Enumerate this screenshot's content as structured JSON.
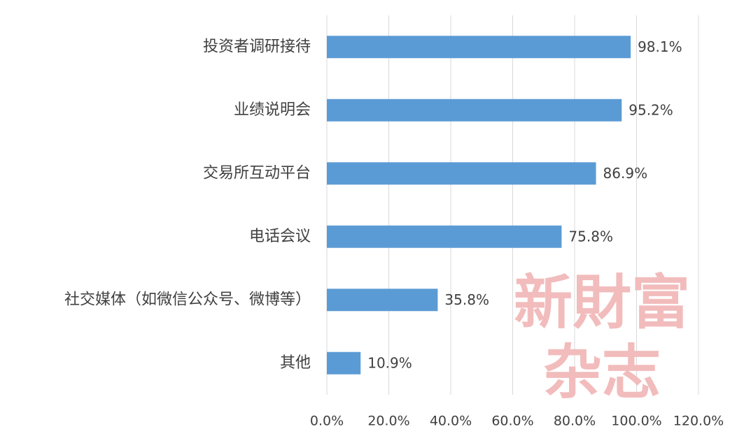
{
  "chart_data": {
    "type": "barh",
    "categories": [
      "投资者调研接待",
      "业绩说明会",
      "交易所互动平台",
      "电话会议",
      "社交媒体（如微信公众号、微博等）",
      "其他"
    ],
    "values": [
      98.1,
      95.2,
      86.9,
      75.8,
      35.8,
      10.9
    ],
    "value_labels": [
      "98.1%",
      "95.2%",
      "86.9%",
      "75.8%",
      "35.8%",
      "10.9%"
    ],
    "color": "#5b9bd5",
    "xlim": [
      0,
      120
    ],
    "xticks": [
      {
        "value": 0,
        "label": "0.0%"
      },
      {
        "value": 20,
        "label": "20.0%"
      },
      {
        "value": 40,
        "label": "40.0%"
      },
      {
        "value": 60,
        "label": "60.0%"
      },
      {
        "value": 80,
        "label": "80.0%"
      },
      {
        "value": 100,
        "label": "100.0%"
      },
      {
        "value": 120,
        "label": "120.0%"
      }
    ],
    "grid": true,
    "watermark": [
      "新財富",
      "杂志"
    ]
  }
}
